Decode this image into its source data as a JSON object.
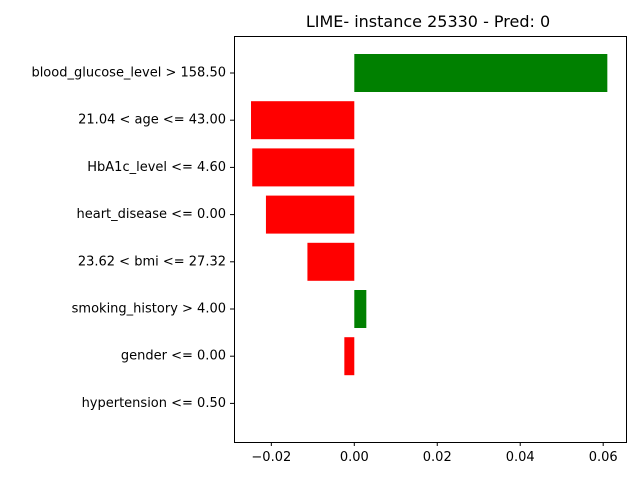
{
  "chart_data": {
    "type": "bar",
    "orientation": "horizontal",
    "title": "LIME- instance 25330 - Pred: 0",
    "xlabel": "",
    "ylabel": "",
    "xlim": [
      -0.029,
      0.0655
    ],
    "xticks": [
      -0.02,
      0.0,
      0.02,
      0.04,
      0.06
    ],
    "xtick_labels": [
      "−0.02",
      "0.00",
      "0.02",
      "0.04",
      "0.06"
    ],
    "categories": [
      "blood_glucose_level > 158.50",
      "21.04 < age <= 43.00",
      "HbA1c_level <= 4.60",
      "heart_disease <= 0.00",
      "23.62 < bmi <= 27.32",
      "smoking_history > 4.00",
      "gender <= 0.00",
      "hypertension <= 0.50"
    ],
    "values": [
      0.061,
      -0.0249,
      -0.0246,
      -0.0213,
      -0.0113,
      0.0029,
      -0.0024,
      0.0
    ],
    "colors": {
      "positive": "#008000",
      "negative": "#ff0000"
    },
    "grid": false,
    "legend": "none"
  }
}
